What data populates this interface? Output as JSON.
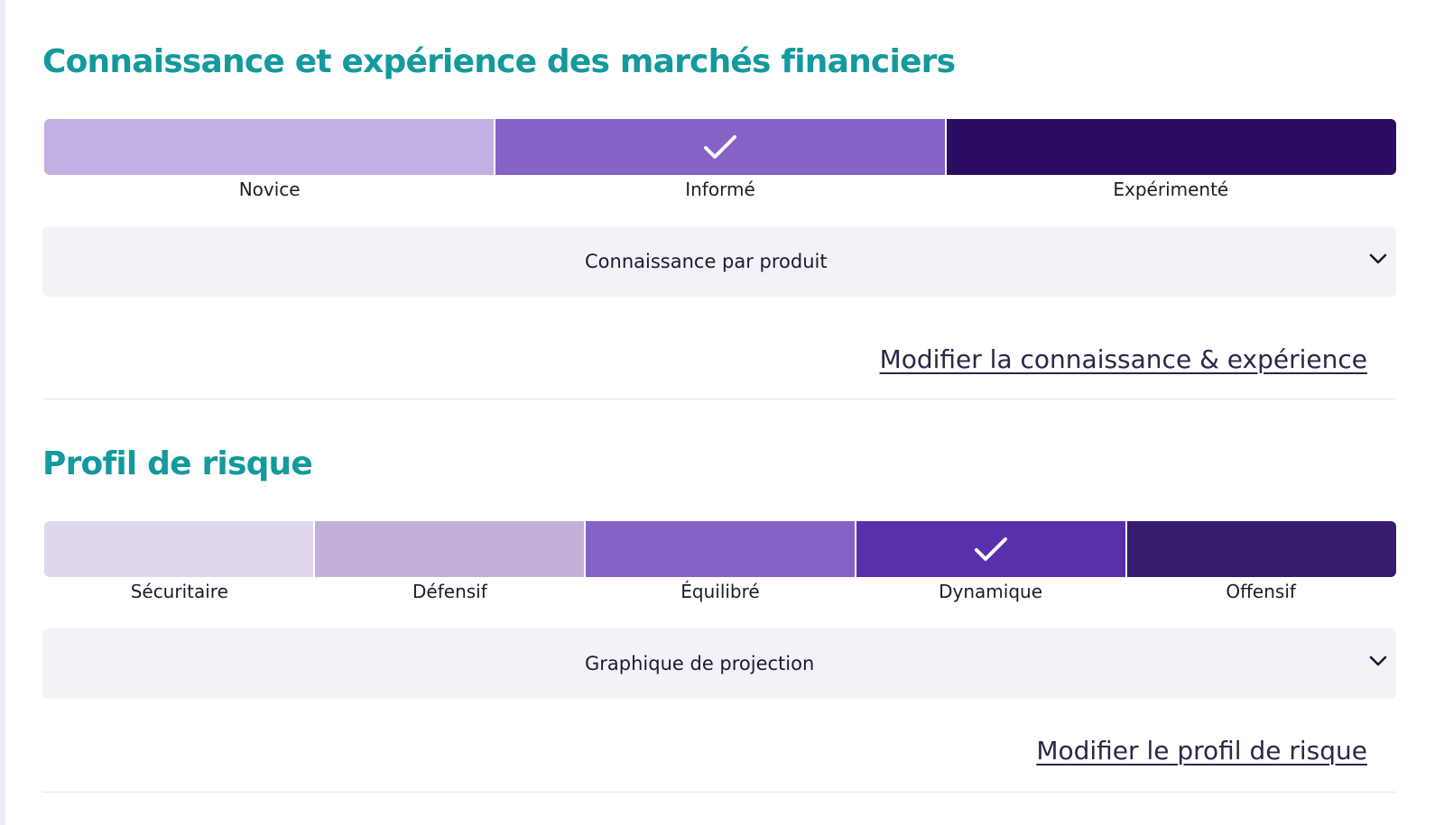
{
  "knowledge": {
    "title": "Connaissance et expérience des marchés financiers",
    "levels": [
      {
        "label": "Novice",
        "color": "#c2b0e2",
        "selected": false
      },
      {
        "label": "Informé",
        "color": "#8562c6",
        "selected": true
      },
      {
        "label": "Expérimenté",
        "color": "#2a0d63",
        "selected": false
      }
    ],
    "accordion_label": "Connaissance par produit",
    "edit_link": "Modifier la connaissance & expérience"
  },
  "risk": {
    "title": "Profil de risque",
    "levels": [
      {
        "label": "Sécuritaire",
        "color": "#e0d7ef",
        "selected": false
      },
      {
        "label": "Défensif",
        "color": "#c2b0d9",
        "selected": false
      },
      {
        "label": "Équilibré",
        "color": "#8562c6",
        "selected": false
      },
      {
        "label": "Dynamique",
        "color": "#5a2fac",
        "selected": true
      },
      {
        "label": "Offensif",
        "color": "#361b6e",
        "selected": false
      }
    ],
    "accordion_label": "Graphique de projection",
    "edit_link": "Modifier le profil de risque"
  },
  "icons": {
    "selected_marker": "check-icon",
    "expand": "chevron-down-icon"
  }
}
